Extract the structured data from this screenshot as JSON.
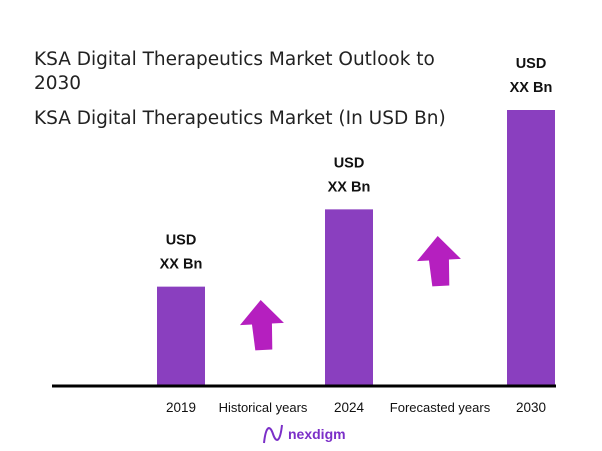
{
  "header": {
    "title": "KSA Digital Therapeutics Market Outlook to 2030",
    "subtitle": "KSA Digital Therapeutics Market (In USD Bn)"
  },
  "chart_data": {
    "type": "bar",
    "categories": [
      "2019",
      "2024",
      "2030"
    ],
    "values": [
      36,
      64,
      100
    ],
    "data_labels": [
      [
        "USD",
        "XX Bn"
      ],
      [
        "USD",
        "XX Bn"
      ],
      [
        "USD",
        "XX Bn"
      ]
    ],
    "between_labels": [
      "Historical years",
      "Forecasted years"
    ],
    "ylim": [
      0,
      100
    ],
    "grid": false,
    "bar_color": "#8a3fbf",
    "arrow_color": "#b51fbf",
    "xlabel": "",
    "ylabel": ""
  },
  "logo": {
    "text": "nexdigm"
  }
}
